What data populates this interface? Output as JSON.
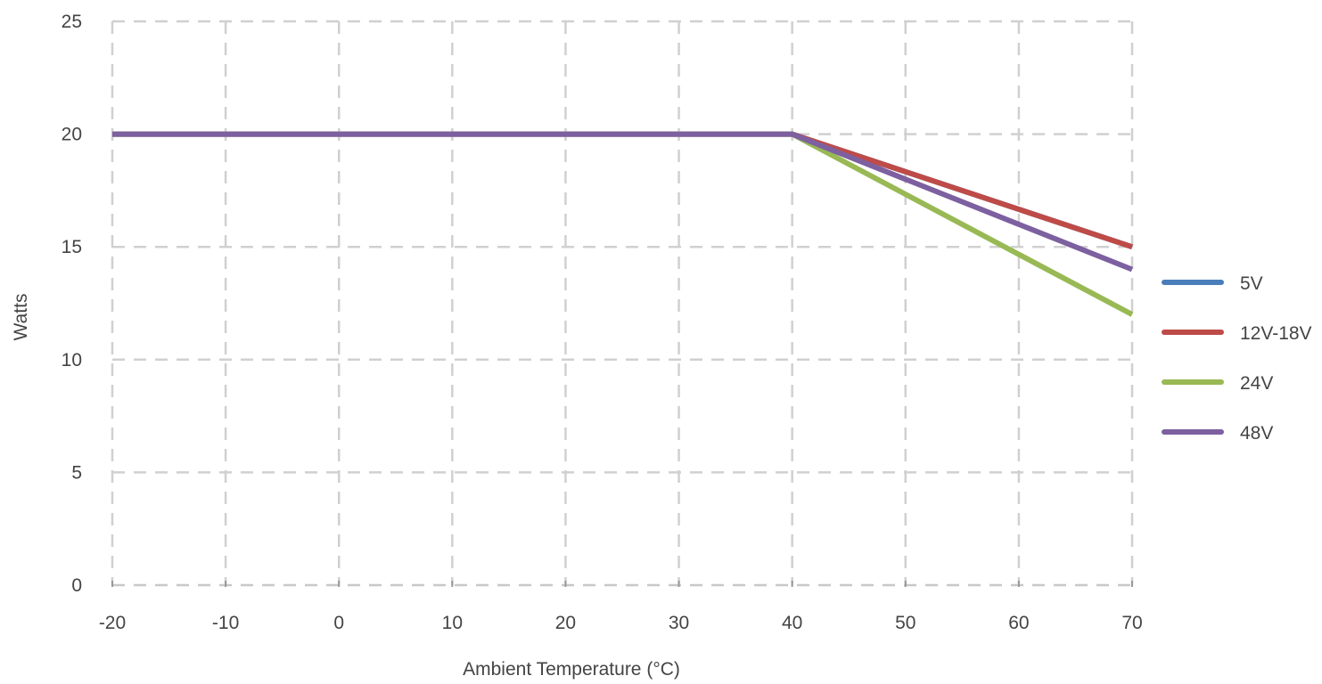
{
  "chart_data": {
    "type": "line",
    "xlabel": "Ambient Temperature (°C)",
    "ylabel": "Watts",
    "xlim": [
      -20,
      70
    ],
    "ylim": [
      0,
      25
    ],
    "x_ticks": [
      -20,
      -10,
      0,
      10,
      20,
      30,
      40,
      50,
      60,
      70
    ],
    "y_ticks": [
      0,
      5,
      10,
      15,
      20,
      25
    ],
    "grid": true,
    "grid_style": "dashed",
    "legend_position": "right",
    "series": [
      {
        "name": "5V",
        "color": "#4a7ebb",
        "x": [
          -20,
          40,
          70
        ],
        "y": [
          20,
          20,
          15
        ]
      },
      {
        "name": "12V-18V",
        "color": "#be4b48",
        "x": [
          -20,
          40,
          70
        ],
        "y": [
          20,
          20,
          15
        ]
      },
      {
        "name": "24V",
        "color": "#98b954",
        "x": [
          -20,
          40,
          70
        ],
        "y": [
          20,
          20,
          12
        ]
      },
      {
        "name": "48V",
        "color": "#7d60a0",
        "x": [
          -20,
          40,
          70
        ],
        "y": [
          20,
          20,
          14
        ]
      }
    ]
  }
}
